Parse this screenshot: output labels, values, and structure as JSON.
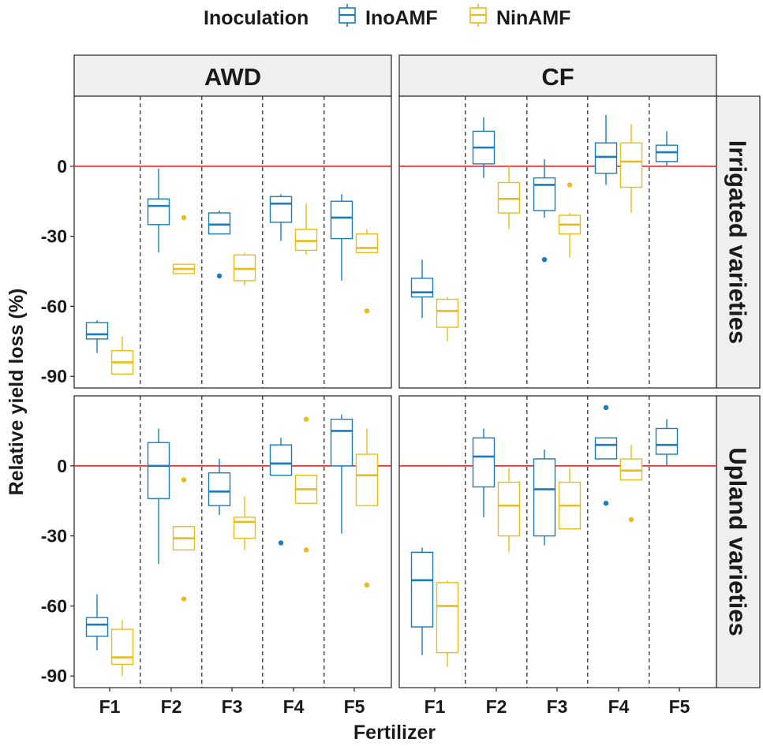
{
  "legend": {
    "title": "Inoculation",
    "items": [
      {
        "label": "InoAMF",
        "color": "#1a7bbd"
      },
      {
        "label": "NinAMF",
        "color": "#e8bd1b"
      }
    ]
  },
  "colors": {
    "reference_line": "#e0262b",
    "strip_bg": "#efefef",
    "panel_border": "#222222"
  },
  "chart_data": {
    "type": "boxplot",
    "xlabel": "Fertilizer",
    "ylabel": "Relative yield loss (%)",
    "categories": [
      "F1",
      "F2",
      "F3",
      "F4",
      "F5"
    ],
    "yticks": [
      0,
      -30,
      -60,
      -90
    ],
    "ylim": [
      -95,
      30
    ],
    "hline": 0,
    "col_facets": [
      "AWD",
      "CF"
    ],
    "row_facets": [
      "Irrigated varieties",
      "Upland varieties"
    ],
    "panels": [
      {
        "col": "AWD",
        "row": "Irrigated varieties",
        "series": [
          {
            "name": "InoAMF",
            "boxes": [
              {
                "cat": "F1",
                "min": -80,
                "q1": -74,
                "median": -72,
                "q3": -67,
                "max": -66,
                "outliers": []
              },
              {
                "cat": "F2",
                "min": -37,
                "q1": -25,
                "median": -17,
                "q3": -14,
                "max": -1,
                "outliers": []
              },
              {
                "cat": "F3",
                "min": -29,
                "q1": -29,
                "median": -25,
                "q3": -20,
                "max": -19,
                "outliers": [
                  -47
                ]
              },
              {
                "cat": "F4",
                "min": -32,
                "q1": -24,
                "median": -16,
                "q3": -13,
                "max": -12,
                "outliers": []
              },
              {
                "cat": "F5",
                "min": -49,
                "q1": -31,
                "median": -22,
                "q3": -15,
                "max": -12,
                "outliers": []
              }
            ]
          },
          {
            "name": "NinAMF",
            "boxes": [
              {
                "cat": "F1",
                "min": -89,
                "q1": -89,
                "median": -84,
                "q3": -79,
                "max": -73,
                "outliers": []
              },
              {
                "cat": "F2",
                "min": -46,
                "q1": -46,
                "median": -44,
                "q3": -42,
                "max": -42,
                "outliers": [
                  -22
                ]
              },
              {
                "cat": "F3",
                "min": -51,
                "q1": -49,
                "median": -44,
                "q3": -38,
                "max": -37,
                "outliers": []
              },
              {
                "cat": "F4",
                "min": -38,
                "q1": -36,
                "median": -32,
                "q3": -27,
                "max": -16,
                "outliers": []
              },
              {
                "cat": "F5",
                "min": -37,
                "q1": -37,
                "median": -35,
                "q3": -29,
                "max": -27,
                "outliers": [
                  -62
                ]
              }
            ]
          }
        ]
      },
      {
        "col": "CF",
        "row": "Irrigated varieties",
        "series": [
          {
            "name": "InoAMF",
            "boxes": [
              {
                "cat": "F1",
                "min": -65,
                "q1": -56,
                "median": -54,
                "q3": -48,
                "max": -40,
                "outliers": []
              },
              {
                "cat": "F2",
                "min": -5,
                "q1": 1,
                "median": 8,
                "q3": 15,
                "max": 21,
                "outliers": []
              },
              {
                "cat": "F3",
                "min": -22,
                "q1": -19,
                "median": -8,
                "q3": -5,
                "max": 3,
                "outliers": [
                  -40
                ]
              },
              {
                "cat": "F4",
                "min": -8,
                "q1": -3,
                "median": 4,
                "q3": 10,
                "max": 22,
                "outliers": []
              },
              {
                "cat": "F5",
                "min": 0,
                "q1": 2,
                "median": 6,
                "q3": 9,
                "max": 15,
                "outliers": []
              }
            ]
          },
          {
            "name": "NinAMF",
            "boxes": [
              {
                "cat": "F1",
                "min": -75,
                "q1": -69,
                "median": -62,
                "q3": -57,
                "max": -56,
                "outliers": []
              },
              {
                "cat": "F2",
                "min": -27,
                "q1": -20,
                "median": -14,
                "q3": -7,
                "max": 0,
                "outliers": []
              },
              {
                "cat": "F3",
                "min": -39,
                "q1": -29,
                "median": -25,
                "q3": -21,
                "max": -20,
                "outliers": [
                  -8
                ]
              },
              {
                "cat": "F4",
                "min": -20,
                "q1": -9,
                "median": 2,
                "q3": 10,
                "max": 18,
                "outliers": []
              }
            ]
          }
        ]
      },
      {
        "col": "AWD",
        "row": "Upland varieties",
        "series": [
          {
            "name": "InoAMF",
            "boxes": [
              {
                "cat": "F1",
                "min": -79,
                "q1": -73,
                "median": -68,
                "q3": -65,
                "max": -55,
                "outliers": []
              },
              {
                "cat": "F2",
                "min": -42,
                "q1": -14,
                "median": 0,
                "q3": 10,
                "max": 16,
                "outliers": []
              },
              {
                "cat": "F3",
                "min": -21,
                "q1": -17,
                "median": -11,
                "q3": -3,
                "max": 3,
                "outliers": []
              },
              {
                "cat": "F4",
                "min": -4,
                "q1": -4,
                "median": 1,
                "q3": 9,
                "max": 12,
                "outliers": [
                  -33
                ]
              },
              {
                "cat": "F5",
                "min": -29,
                "q1": 0,
                "median": 15,
                "q3": 20,
                "max": 22,
                "outliers": []
              }
            ]
          },
          {
            "name": "NinAMF",
            "boxes": [
              {
                "cat": "F1",
                "min": -90,
                "q1": -85,
                "median": -82,
                "q3": -70,
                "max": -66,
                "outliers": []
              },
              {
                "cat": "F2",
                "min": -36,
                "q1": -36,
                "median": -31,
                "q3": -26,
                "max": -26,
                "outliers": [
                  -6,
                  -57
                ]
              },
              {
                "cat": "F3",
                "min": -36,
                "q1": -31,
                "median": -24,
                "q3": -22,
                "max": -13,
                "outliers": []
              },
              {
                "cat": "F4",
                "min": -16,
                "q1": -16,
                "median": -10,
                "q3": -4,
                "max": -4,
                "outliers": [
                  20,
                  -36
                ]
              },
              {
                "cat": "F5",
                "min": -17,
                "q1": -17,
                "median": -4,
                "q3": 5,
                "max": 16,
                "outliers": [
                  -51
                ]
              }
            ]
          }
        ]
      },
      {
        "col": "CF",
        "row": "Upland varieties",
        "series": [
          {
            "name": "InoAMF",
            "boxes": [
              {
                "cat": "F1",
                "min": -81,
                "q1": -69,
                "median": -49,
                "q3": -37,
                "max": -35,
                "outliers": []
              },
              {
                "cat": "F2",
                "min": -22,
                "q1": -9,
                "median": 4,
                "q3": 12,
                "max": 16,
                "outliers": []
              },
              {
                "cat": "F3",
                "min": -34,
                "q1": -30,
                "median": -10,
                "q3": 3,
                "max": 7,
                "outliers": []
              },
              {
                "cat": "F4",
                "min": 3,
                "q1": 3,
                "median": 9,
                "q3": 12,
                "max": 12,
                "outliers": [
                  25,
                  -16
                ]
              },
              {
                "cat": "F5",
                "min": 0,
                "q1": 5,
                "median": 9,
                "q3": 16,
                "max": 20,
                "outliers": []
              }
            ]
          },
          {
            "name": "NinAMF",
            "boxes": [
              {
                "cat": "F1",
                "min": -86,
                "q1": -80,
                "median": -60,
                "q3": -50,
                "max": -49,
                "outliers": []
              },
              {
                "cat": "F2",
                "min": -37,
                "q1": -30,
                "median": -17,
                "q3": -7,
                "max": -1,
                "outliers": []
              },
              {
                "cat": "F3",
                "min": -27,
                "q1": -27,
                "median": -17,
                "q3": -7,
                "max": -1,
                "outliers": []
              },
              {
                "cat": "F4",
                "min": -6,
                "q1": -6,
                "median": -2,
                "q3": 3,
                "max": 9,
                "outliers": [
                  -23
                ]
              }
            ]
          }
        ]
      }
    ]
  }
}
